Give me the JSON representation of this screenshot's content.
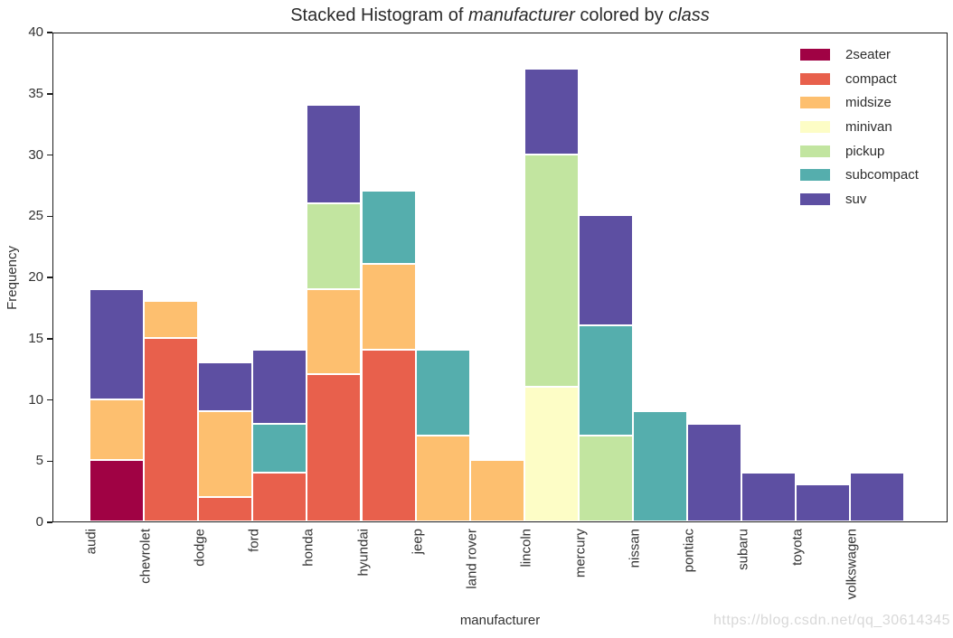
{
  "title": {
    "prefix": "Stacked Histogram of ",
    "var1": "manufacturer",
    "middle": " colored by ",
    "var2": "class"
  },
  "axes": {
    "xlabel": "manufacturer",
    "ylabel": "Frequency"
  },
  "watermark": "https://blog.csdn.net/qq_30614345",
  "chart_data": {
    "type": "bar",
    "stacked": true,
    "title": "Stacked Histogram of manufacturer colored by class",
    "xlabel": "manufacturer",
    "ylabel": "Frequency",
    "ylim": [
      0,
      40
    ],
    "yticks": [
      0,
      5,
      10,
      15,
      20,
      25,
      30,
      35,
      40
    ],
    "grid": false,
    "legend_position": "upper right",
    "classes": [
      {
        "name": "2seater",
        "color": "#a00244"
      },
      {
        "name": "compact",
        "color": "#e8604c"
      },
      {
        "name": "midsize",
        "color": "#fdbf6f"
      },
      {
        "name": "minivan",
        "color": "#fdfdc6"
      },
      {
        "name": "pickup",
        "color": "#c2e5a0"
      },
      {
        "name": "subcompact",
        "color": "#55aead"
      },
      {
        "name": "suv",
        "color": "#5d4fa2"
      }
    ],
    "categories": [
      "audi",
      "chevrolet",
      "dodge",
      "ford",
      "honda",
      "hyundai",
      "jeep",
      "land rover",
      "lincoln",
      "mercury",
      "nissan",
      "pontiac",
      "subaru",
      "toyota",
      "volkswagen"
    ],
    "series": [
      {
        "name": "2seater",
        "values": [
          5,
          0,
          0,
          0,
          0,
          0,
          0,
          0,
          0,
          0,
          0,
          0,
          0,
          0,
          0
        ]
      },
      {
        "name": "compact",
        "values": [
          0,
          15,
          2,
          4,
          12,
          14,
          0,
          0,
          0,
          0,
          0,
          0,
          0,
          0,
          0
        ]
      },
      {
        "name": "midsize",
        "values": [
          5,
          3,
          7,
          0,
          7,
          7,
          7,
          5,
          0,
          0,
          0,
          0,
          0,
          0,
          0
        ]
      },
      {
        "name": "minivan",
        "values": [
          0,
          0,
          0,
          0,
          0,
          0,
          0,
          0,
          11,
          0,
          0,
          0,
          0,
          0,
          0
        ]
      },
      {
        "name": "pickup",
        "values": [
          0,
          0,
          0,
          0,
          7,
          0,
          0,
          0,
          19,
          7,
          0,
          0,
          0,
          0,
          0
        ]
      },
      {
        "name": "subcompact",
        "values": [
          0,
          0,
          0,
          4,
          0,
          6,
          7,
          0,
          0,
          9,
          9,
          0,
          0,
          0,
          0
        ]
      },
      {
        "name": "suv",
        "values": [
          9,
          0,
          4,
          6,
          8,
          0,
          0,
          0,
          7,
          9,
          0,
          8,
          4,
          3,
          4
        ]
      }
    ],
    "totals": [
      19,
      18,
      13,
      14,
      34,
      27,
      14,
      5,
      37,
      25,
      9,
      8,
      4,
      3,
      4
    ]
  }
}
